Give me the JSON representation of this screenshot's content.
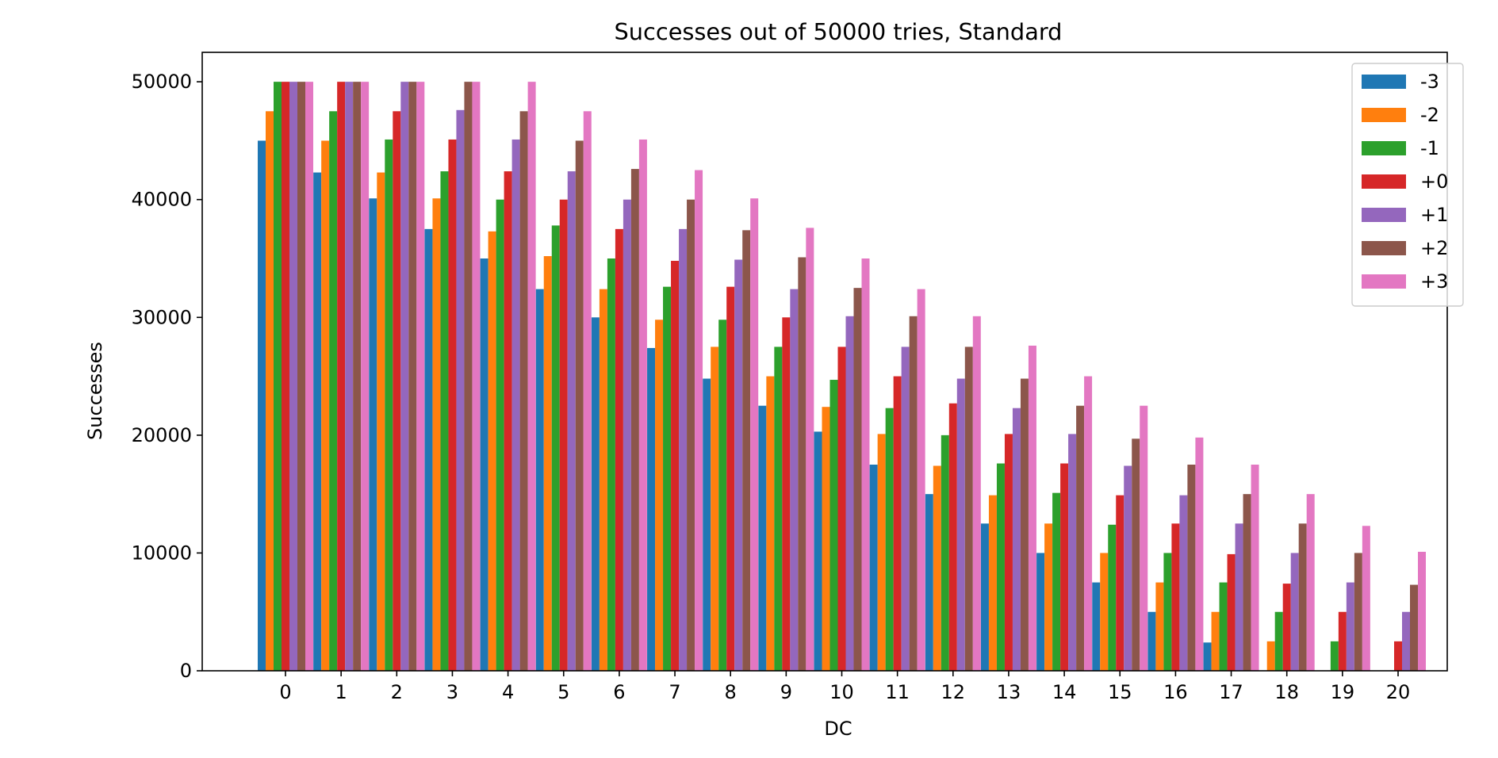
{
  "chart_data": {
    "type": "bar",
    "title": "Successes out of 50000 tries, Standard",
    "xlabel": "DC",
    "ylabel": "Successes",
    "categories": [
      "0",
      "1",
      "2",
      "3",
      "4",
      "5",
      "6",
      "7",
      "8",
      "9",
      "10",
      "11",
      "12",
      "13",
      "14",
      "15",
      "16",
      "17",
      "18",
      "19",
      "20"
    ],
    "ylim": [
      0,
      52500
    ],
    "yticks": [
      "0",
      "10000",
      "20000",
      "30000",
      "40000",
      "50000"
    ],
    "ytick_values": [
      0,
      10000,
      20000,
      30000,
      40000,
      50000
    ],
    "grid": false,
    "legend_position": "top-right",
    "series": [
      {
        "name": "-3",
        "color": "#1f77b4",
        "values": [
          45000,
          42300,
          40100,
          37500,
          35000,
          32400,
          30000,
          27400,
          24800,
          22500,
          20300,
          17500,
          15000,
          12500,
          10000,
          7500,
          5000,
          2400,
          0,
          0,
          0
        ]
      },
      {
        "name": "-2",
        "color": "#ff7f0e",
        "values": [
          47500,
          45000,
          42300,
          40100,
          37300,
          35200,
          32400,
          29800,
          27500,
          25000,
          22400,
          20100,
          17400,
          14900,
          12500,
          10000,
          7500,
          5000,
          2500,
          0,
          0
        ]
      },
      {
        "name": "-1",
        "color": "#2ca02c",
        "values": [
          50000,
          47500,
          45100,
          42400,
          40000,
          37800,
          35000,
          32600,
          29800,
          27500,
          24700,
          22300,
          20000,
          17600,
          15100,
          12400,
          10000,
          7500,
          5000,
          2500,
          0
        ]
      },
      {
        "name": "+0",
        "color": "#d62728",
        "values": [
          50000,
          50000,
          47500,
          45100,
          42400,
          40000,
          37500,
          34800,
          32600,
          30000,
          27500,
          25000,
          22700,
          20100,
          17600,
          14900,
          12500,
          9900,
          7400,
          5000,
          2500
        ]
      },
      {
        "name": "+1",
        "color": "#9467bd",
        "values": [
          50000,
          50000,
          50000,
          47600,
          45100,
          42400,
          40000,
          37500,
          34900,
          32400,
          30100,
          27500,
          24800,
          22300,
          20100,
          17400,
          14900,
          12500,
          10000,
          7500,
          5000
        ]
      },
      {
        "name": "+2",
        "color": "#8c564b",
        "values": [
          50000,
          50000,
          50000,
          50000,
          47500,
          45000,
          42600,
          40000,
          37400,
          35100,
          32500,
          30100,
          27500,
          24800,
          22500,
          19700,
          17500,
          15000,
          12500,
          10000,
          7300
        ]
      },
      {
        "name": "+3",
        "color": "#e377c2",
        "values": [
          50000,
          50000,
          50000,
          50000,
          50000,
          47500,
          45100,
          42500,
          40100,
          37600,
          35000,
          32400,
          30100,
          27600,
          25000,
          22500,
          19800,
          17500,
          15000,
          12300,
          10100
        ]
      }
    ]
  }
}
